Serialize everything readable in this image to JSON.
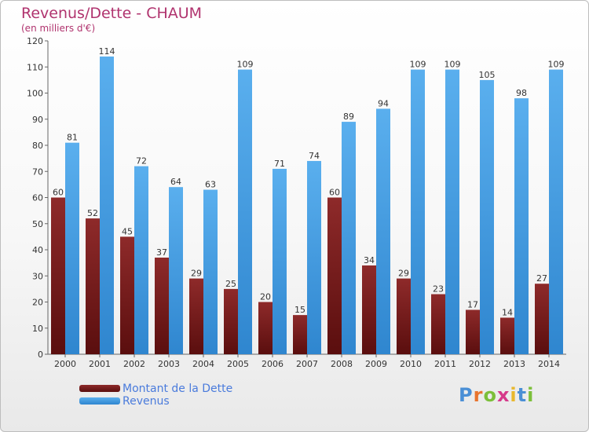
{
  "title": "Revenus/Dette - CHAUM",
  "subtitle": "(en milliers d'€)",
  "logo": {
    "text": "Proxiti",
    "colors": [
      "#4a8fd6",
      "#e8742e",
      "#7cbf3a",
      "#d63a8a",
      "#e8b82e",
      "#4a8fd6",
      "#7cbf3a"
    ]
  },
  "chart_data": {
    "type": "bar",
    "categories": [
      "2000",
      "2001",
      "2002",
      "2003",
      "2004",
      "2005",
      "2006",
      "2007",
      "2008",
      "2009",
      "2010",
      "2011",
      "2012",
      "2013",
      "2014"
    ],
    "series": [
      {
        "name": "Montant de la Dette",
        "color": "#7a1a1a",
        "values": [
          60,
          52,
          45,
          37,
          29,
          25,
          20,
          15,
          60,
          34,
          29,
          23,
          17,
          14,
          27
        ]
      },
      {
        "name": "Revenus",
        "color": "#4ba0e6",
        "values": [
          81,
          114,
          72,
          64,
          63,
          109,
          71,
          74,
          89,
          94,
          109,
          109,
          105,
          98,
          109
        ]
      }
    ],
    "title": "Revenus/Dette - CHAUM",
    "subtitle": "(en milliers d'€)",
    "ylim": [
      0,
      120
    ],
    "yticks": [
      0,
      10,
      20,
      30,
      40,
      50,
      60,
      70,
      80,
      90,
      100,
      110,
      120
    ],
    "grid": false,
    "legend": "bottom-left"
  }
}
